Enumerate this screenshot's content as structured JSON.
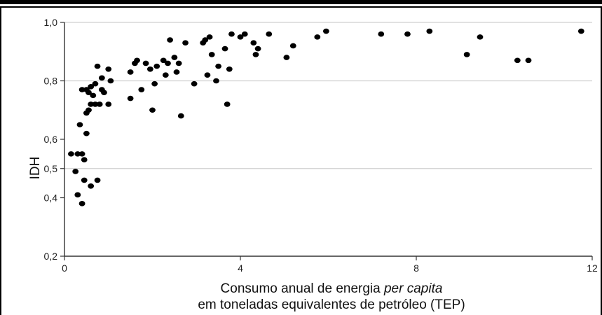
{
  "chart_data": {
    "type": "scatter",
    "title": "",
    "xlabel_line1_prefix": "Consumo anual de energia ",
    "xlabel_line1_italic": "per capita",
    "xlabel_line2": "em toneladas equivalentes de petróleo (TEP)",
    "ylabel": "IDH",
    "xlim": [
      0,
      12
    ],
    "ylim": [
      0.2,
      1.0
    ],
    "x_ticks": [
      "0",
      "4",
      "8",
      "12"
    ],
    "y_ticks": [
      "0,2",
      "0,4",
      "0,5",
      "0,6",
      "0,8",
      "1,0"
    ],
    "y_tick_values": [
      0.2,
      0.4,
      0.5,
      0.6,
      0.8,
      1.0
    ],
    "x_tick_values": [
      0,
      4,
      8,
      12
    ],
    "gridlines_y": [
      0.5,
      0.8,
      1.0
    ],
    "grid": true,
    "legend": "none",
    "point_color": "#000000",
    "series": [
      {
        "points": [
          [
            0.15,
            0.55
          ],
          [
            0.25,
            0.49
          ],
          [
            0.3,
            0.55
          ],
          [
            0.3,
            0.41
          ],
          [
            0.35,
            0.65
          ],
          [
            0.4,
            0.38
          ],
          [
            0.4,
            0.77
          ],
          [
            0.4,
            0.55
          ],
          [
            0.45,
            0.46
          ],
          [
            0.45,
            0.53
          ],
          [
            0.5,
            0.62
          ],
          [
            0.5,
            0.69
          ],
          [
            0.5,
            0.77
          ],
          [
            0.55,
            0.7
          ],
          [
            0.55,
            0.76
          ],
          [
            0.6,
            0.44
          ],
          [
            0.6,
            0.72
          ],
          [
            0.6,
            0.78
          ],
          [
            0.65,
            0.75
          ],
          [
            0.7,
            0.72
          ],
          [
            0.7,
            0.79
          ],
          [
            0.75,
            0.85
          ],
          [
            0.75,
            0.46
          ],
          [
            0.8,
            0.72
          ],
          [
            0.85,
            0.81
          ],
          [
            0.85,
            0.77
          ],
          [
            0.9,
            0.76
          ],
          [
            1.0,
            0.84
          ],
          [
            1.0,
            0.72
          ],
          [
            1.05,
            0.8
          ],
          [
            1.5,
            0.83
          ],
          [
            1.5,
            0.74
          ],
          [
            1.6,
            0.86
          ],
          [
            1.65,
            0.87
          ],
          [
            1.75,
            0.77
          ],
          [
            1.85,
            0.86
          ],
          [
            1.95,
            0.84
          ],
          [
            2.0,
            0.7
          ],
          [
            2.05,
            0.79
          ],
          [
            2.1,
            0.85
          ],
          [
            2.25,
            0.87
          ],
          [
            2.3,
            0.82
          ],
          [
            2.35,
            0.86
          ],
          [
            2.4,
            0.94
          ],
          [
            2.5,
            0.88
          ],
          [
            2.55,
            0.83
          ],
          [
            2.6,
            0.86
          ],
          [
            2.65,
            0.68
          ],
          [
            2.75,
            0.93
          ],
          [
            2.95,
            0.79
          ],
          [
            3.15,
            0.93
          ],
          [
            3.2,
            0.94
          ],
          [
            3.25,
            0.82
          ],
          [
            3.3,
            0.95
          ],
          [
            3.35,
            0.89
          ],
          [
            3.45,
            0.8
          ],
          [
            3.5,
            0.85
          ],
          [
            3.65,
            0.91
          ],
          [
            3.7,
            0.72
          ],
          [
            3.75,
            0.84
          ],
          [
            3.8,
            0.96
          ],
          [
            4.0,
            0.95
          ],
          [
            4.1,
            0.96
          ],
          [
            4.3,
            0.93
          ],
          [
            4.35,
            0.89
          ],
          [
            4.4,
            0.91
          ],
          [
            4.65,
            0.96
          ],
          [
            5.05,
            0.88
          ],
          [
            5.2,
            0.92
          ],
          [
            5.75,
            0.95
          ],
          [
            5.95,
            0.97
          ],
          [
            7.2,
            0.96
          ],
          [
            7.8,
            0.96
          ],
          [
            8.3,
            0.97
          ],
          [
            9.15,
            0.89
          ],
          [
            9.45,
            0.95
          ],
          [
            10.3,
            0.87
          ],
          [
            10.55,
            0.87
          ],
          [
            11.75,
            0.97
          ]
        ]
      }
    ]
  }
}
